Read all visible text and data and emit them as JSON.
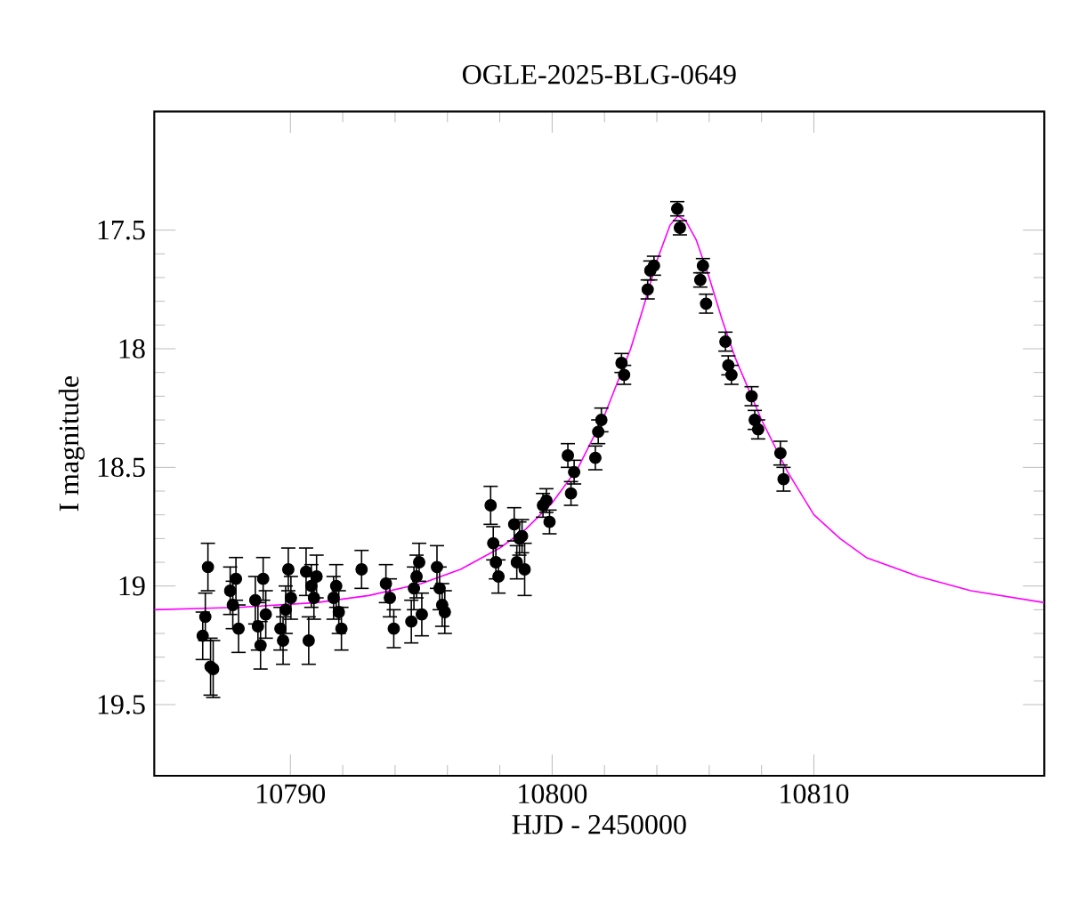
{
  "chart_data": {
    "type": "scatter",
    "title": "OGLE-2025-BLG-0649",
    "xlabel": "HJD - 2450000",
    "ylabel": "I magnitude",
    "xlim": [
      10784.8,
      10818.8
    ],
    "xticks": [
      10790,
      10800,
      10810
    ],
    "ylim": [
      19.8,
      17.0
    ],
    "yticks": [
      17.5,
      18,
      18.5,
      19,
      19.5
    ],
    "grid": false,
    "marker": "circle",
    "series": [
      {
        "color": "#000000",
        "x": [
          10786.85,
          10786.75,
          10786.65,
          10786.95,
          10787.05,
          10787.7,
          10787.8,
          10787.92,
          10788.02,
          10788.66,
          10788.76,
          10788.86,
          10788.96,
          10789.06,
          10789.62,
          10789.72,
          10789.82,
          10789.92,
          10790.02,
          10790.6,
          10790.7,
          10790.8,
          10790.9,
          10791.0,
          10791.65,
          10791.75,
          10791.85,
          10791.95,
          10792.72,
          10793.65,
          10793.8,
          10793.95,
          10794.62,
          10794.72,
          10794.82,
          10794.92,
          10795.02,
          10795.6,
          10795.7,
          10795.8,
          10795.9,
          10797.65,
          10797.75,
          10797.85,
          10797.95,
          10798.55,
          10798.65,
          10798.95,
          10798.85,
          10798.75,
          10799.65,
          10799.9,
          10799.78,
          10800.6,
          10800.72,
          10800.84,
          10801.65,
          10801.76,
          10801.88,
          10802.65,
          10802.75,
          10803.75,
          10803.65,
          10803.89,
          10804.78,
          10804.88,
          10805.76,
          10805.66,
          10805.88,
          10806.62,
          10806.73,
          10806.85,
          10807.62,
          10807.74,
          10807.87,
          10808.72,
          10808.84
        ],
        "values": [
          18.92,
          19.13,
          19.21,
          19.34,
          19.35,
          19.02,
          19.08,
          18.97,
          19.18,
          19.06,
          19.17,
          19.25,
          18.97,
          19.12,
          19.18,
          19.23,
          19.1,
          18.93,
          19.05,
          18.94,
          19.23,
          19.0,
          19.05,
          18.96,
          19.05,
          19.0,
          19.11,
          19.18,
          18.93,
          18.99,
          19.05,
          19.18,
          19.15,
          19.01,
          18.96,
          18.9,
          19.12,
          18.92,
          19.01,
          19.08,
          19.11,
          18.66,
          18.82,
          18.9,
          18.96,
          18.74,
          18.9,
          18.93,
          18.79,
          18.8,
          18.66,
          18.73,
          18.64,
          18.45,
          18.61,
          18.52,
          18.46,
          18.35,
          18.3,
          18.06,
          18.11,
          17.67,
          17.75,
          17.65,
          17.41,
          17.49,
          17.65,
          17.71,
          17.81,
          17.97,
          18.07,
          18.11,
          18.2,
          18.3,
          18.34,
          18.44,
          18.55
        ],
        "errors": [
          0.1,
          0.1,
          0.1,
          0.12,
          0.12,
          0.1,
          0.1,
          0.09,
          0.1,
          0.1,
          0.1,
          0.1,
          0.09,
          0.1,
          0.09,
          0.1,
          0.1,
          0.09,
          0.09,
          0.1,
          0.1,
          0.09,
          0.09,
          0.09,
          0.09,
          0.09,
          0.09,
          0.09,
          0.08,
          0.08,
          0.08,
          0.08,
          0.09,
          0.09,
          0.09,
          0.08,
          0.09,
          0.09,
          0.09,
          0.09,
          0.09,
          0.08,
          0.07,
          0.07,
          0.07,
          0.07,
          0.07,
          0.11,
          0.07,
          0.07,
          0.05,
          0.05,
          0.05,
          0.05,
          0.05,
          0.05,
          0.05,
          0.05,
          0.05,
          0.04,
          0.04,
          0.04,
          0.04,
          0.04,
          0.03,
          0.03,
          0.03,
          0.03,
          0.04,
          0.04,
          0.04,
          0.04,
          0.04,
          0.04,
          0.04,
          0.05,
          0.05
        ]
      },
      {
        "type": "line",
        "color": "#ff00ff",
        "marker": "none",
        "x": [
          10784.8,
          10788,
          10791,
          10793,
          10795,
          10796.5,
          10798,
          10799,
          10800,
          10801,
          10802,
          10803,
          10803.5,
          10804,
          10804.5,
          10804.8,
          10805.1,
          10805.5,
          10806,
          10806.5,
          10807,
          10808,
          10809,
          10810,
          10811,
          10812,
          10814,
          10816,
          10818.8
        ],
        "values": [
          19.1,
          19.09,
          19.07,
          19.04,
          18.99,
          18.93,
          18.84,
          18.76,
          18.65,
          18.5,
          18.28,
          18.0,
          17.82,
          17.63,
          17.48,
          17.44,
          17.46,
          17.54,
          17.7,
          17.88,
          18.04,
          18.3,
          18.52,
          18.7,
          18.8,
          18.88,
          18.96,
          19.02,
          19.07
        ]
      }
    ]
  }
}
